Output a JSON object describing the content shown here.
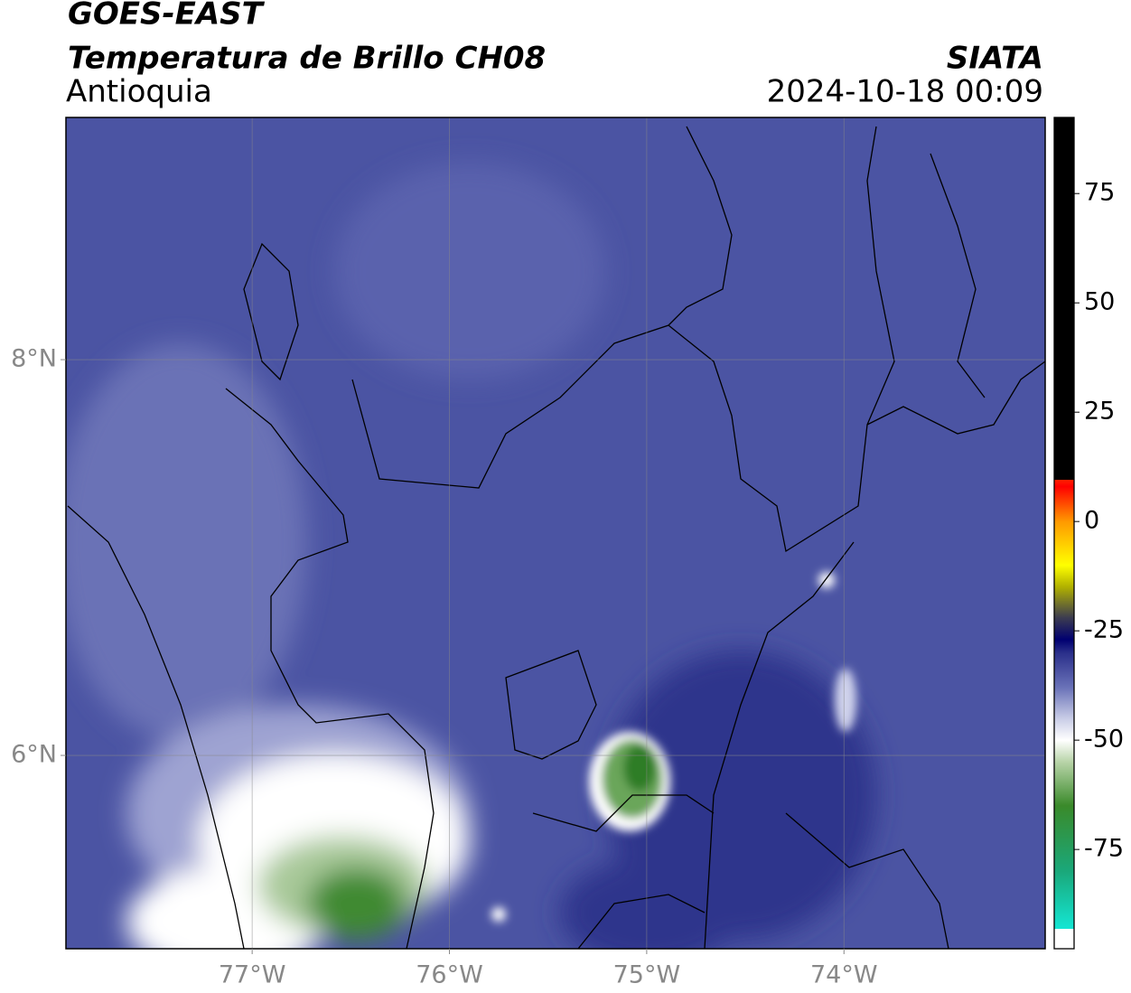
{
  "header": {
    "title": "GOES-EAST",
    "subtitle": "Temperatura de Brillo CH08",
    "region": "Antioquia",
    "agency": "SIATA",
    "datetime": "2024-10-18 00:09"
  },
  "map": {
    "xlim": [
      -77.944,
      -72.98
    ],
    "ylim": [
      5.023,
      9.224
    ],
    "xticks": [
      {
        "value": -77,
        "label": "77°W"
      },
      {
        "value": -76,
        "label": "76°W"
      },
      {
        "value": -75,
        "label": "75°W"
      },
      {
        "value": -74,
        "label": "74°W"
      }
    ],
    "yticks": [
      {
        "value": 6,
        "label": "6°N"
      },
      {
        "value": 8,
        "label": "8°N"
      }
    ],
    "grid": true
  },
  "colorbar": {
    "lim": [
      -97.7,
      92.4
    ],
    "ticks": [
      -75,
      -50,
      -25,
      0,
      25,
      50,
      75
    ],
    "stops": [
      {
        "value": -97.7,
        "color": "#ffffff"
      },
      {
        "value": -93.2,
        "color": "#ffffff"
      },
      {
        "value": -93.2,
        "color": "#14e6d4"
      },
      {
        "value": -80,
        "color": "#1aa87a"
      },
      {
        "value": -65,
        "color": "#3a8a2a"
      },
      {
        "value": -55,
        "color": "#b8d4a8"
      },
      {
        "value": -50,
        "color": "#ffffff"
      },
      {
        "value": -45,
        "color": "#c8cce6"
      },
      {
        "value": -38,
        "color": "#6a72b8"
      },
      {
        "value": -30,
        "color": "#2a2f8a"
      },
      {
        "value": -27,
        "color": "#000070"
      },
      {
        "value": -22,
        "color": "#3c3c50"
      },
      {
        "value": -15,
        "color": "#b0b000"
      },
      {
        "value": -10,
        "color": "#ffff00"
      },
      {
        "value": 0,
        "color": "#ff9900"
      },
      {
        "value": 8,
        "color": "#ff0000"
      },
      {
        "value": 9.5,
        "color": "#ff2000"
      },
      {
        "value": 9.5,
        "color": "#000000"
      },
      {
        "value": 92.4,
        "color": "#000000"
      }
    ]
  }
}
